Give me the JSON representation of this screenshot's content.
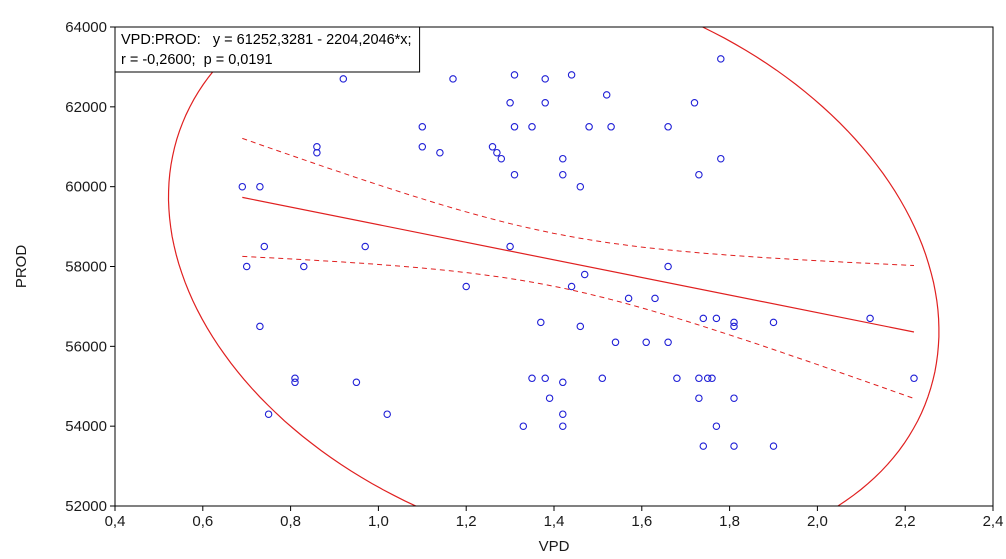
{
  "chart_data": {
    "type": "scatter",
    "xlabel": "VPD",
    "ylabel": "PROD",
    "xlim": [
      0.4,
      2.4
    ],
    "ylim": [
      52000,
      64000
    ],
    "xticks": [
      "0,4",
      "0,6",
      "0,8",
      "1,0",
      "1,2",
      "1,4",
      "1,6",
      "1,8",
      "2,0",
      "2,2",
      "2,4"
    ],
    "yticks": [
      "52000",
      "54000",
      "56000",
      "58000",
      "60000",
      "62000",
      "64000"
    ],
    "grid": false,
    "colors": {
      "points": "#1f1fd6",
      "fit": "#e02020",
      "frame": "#000000"
    },
    "annotation": {
      "line1": "VPD:PROD:   y = 61252,3281 - 2204,2046*x;",
      "line2": "r = -0,2600;  p = 0,0191"
    },
    "regression": {
      "intercept": 61252.3281,
      "slope": -2204.2046
    },
    "ellipse_note": "95% confidence ellipse",
    "points": [
      {
        "x": 0.69,
        "y": 60000
      },
      {
        "x": 0.73,
        "y": 60000
      },
      {
        "x": 0.74,
        "y": 58500
      },
      {
        "x": 0.7,
        "y": 58000
      },
      {
        "x": 0.73,
        "y": 56500
      },
      {
        "x": 0.75,
        "y": 54300
      },
      {
        "x": 0.81,
        "y": 55200
      },
      {
        "x": 0.81,
        "y": 55100
      },
      {
        "x": 0.83,
        "y": 58000
      },
      {
        "x": 0.86,
        "y": 61000
      },
      {
        "x": 0.86,
        "y": 60850
      },
      {
        "x": 0.92,
        "y": 62700
      },
      {
        "x": 0.95,
        "y": 55100
      },
      {
        "x": 0.97,
        "y": 58500
      },
      {
        "x": 1.02,
        "y": 54300
      },
      {
        "x": 1.1,
        "y": 61500
      },
      {
        "x": 1.1,
        "y": 61000
      },
      {
        "x": 1.14,
        "y": 60850
      },
      {
        "x": 1.17,
        "y": 62700
      },
      {
        "x": 1.2,
        "y": 57500
      },
      {
        "x": 1.26,
        "y": 61000
      },
      {
        "x": 1.27,
        "y": 60850
      },
      {
        "x": 1.28,
        "y": 60700
      },
      {
        "x": 1.3,
        "y": 62100
      },
      {
        "x": 1.31,
        "y": 62800
      },
      {
        "x": 1.31,
        "y": 61500
      },
      {
        "x": 1.31,
        "y": 60300
      },
      {
        "x": 1.3,
        "y": 58500
      },
      {
        "x": 1.33,
        "y": 54000
      },
      {
        "x": 1.35,
        "y": 61500
      },
      {
        "x": 1.35,
        "y": 55200
      },
      {
        "x": 1.37,
        "y": 56600
      },
      {
        "x": 1.38,
        "y": 62700
      },
      {
        "x": 1.38,
        "y": 62100
      },
      {
        "x": 1.38,
        "y": 55200
      },
      {
        "x": 1.39,
        "y": 54700
      },
      {
        "x": 1.42,
        "y": 60700
      },
      {
        "x": 1.42,
        "y": 60300
      },
      {
        "x": 1.42,
        "y": 55100
      },
      {
        "x": 1.42,
        "y": 54300
      },
      {
        "x": 1.42,
        "y": 54000
      },
      {
        "x": 1.44,
        "y": 62800
      },
      {
        "x": 1.44,
        "y": 57500
      },
      {
        "x": 1.46,
        "y": 60000
      },
      {
        "x": 1.46,
        "y": 56500
      },
      {
        "x": 1.47,
        "y": 57800
      },
      {
        "x": 1.48,
        "y": 61500
      },
      {
        "x": 1.51,
        "y": 55200
      },
      {
        "x": 1.52,
        "y": 62300
      },
      {
        "x": 1.53,
        "y": 61500
      },
      {
        "x": 1.54,
        "y": 56100
      },
      {
        "x": 1.57,
        "y": 57200
      },
      {
        "x": 1.61,
        "y": 56100
      },
      {
        "x": 1.63,
        "y": 57200
      },
      {
        "x": 1.66,
        "y": 61500
      },
      {
        "x": 1.66,
        "y": 58000
      },
      {
        "x": 1.66,
        "y": 56100
      },
      {
        "x": 1.68,
        "y": 55200
      },
      {
        "x": 1.72,
        "y": 62100
      },
      {
        "x": 1.73,
        "y": 60300
      },
      {
        "x": 1.73,
        "y": 55200
      },
      {
        "x": 1.73,
        "y": 54700
      },
      {
        "x": 1.74,
        "y": 56700
      },
      {
        "x": 1.74,
        "y": 53500
      },
      {
        "x": 1.75,
        "y": 55200
      },
      {
        "x": 1.76,
        "y": 55200
      },
      {
        "x": 1.77,
        "y": 56700
      },
      {
        "x": 1.77,
        "y": 54000
      },
      {
        "x": 1.78,
        "y": 63200
      },
      {
        "x": 1.78,
        "y": 60700
      },
      {
        "x": 1.81,
        "y": 56600
      },
      {
        "x": 1.81,
        "y": 56500
      },
      {
        "x": 1.81,
        "y": 54700
      },
      {
        "x": 1.81,
        "y": 53500
      },
      {
        "x": 1.9,
        "y": 56600
      },
      {
        "x": 1.9,
        "y": 53500
      },
      {
        "x": 2.12,
        "y": 56700
      },
      {
        "x": 2.22,
        "y": 55200
      }
    ]
  }
}
